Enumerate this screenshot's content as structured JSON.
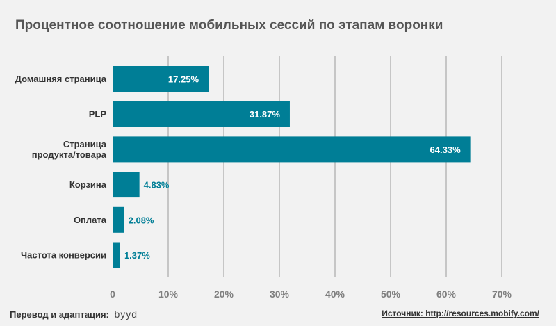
{
  "chart_data": {
    "type": "bar",
    "orientation": "horizontal",
    "title": "Процентное соотношение мобильных сессий по этапам воронки",
    "categories": [
      [
        "Домашняя страница"
      ],
      [
        "PLP"
      ],
      [
        "Страница",
        "продукта/товара"
      ],
      [
        "Корзина"
      ],
      [
        "Оплата"
      ],
      [
        "Частота конверсии"
      ]
    ],
    "values": [
      17.25,
      31.87,
      64.33,
      4.83,
      2.08,
      1.37
    ],
    "value_labels": [
      "17.25%",
      "31.87%",
      "64.33%",
      "4.83%",
      "2.08%",
      "1.37%"
    ],
    "xlim": [
      0,
      70
    ],
    "xticks": [
      0,
      10,
      20,
      30,
      40,
      50,
      60,
      70
    ],
    "xtick_labels": [
      "0",
      "10%",
      "20%",
      "30%",
      "40%",
      "50%",
      "60%",
      "70%"
    ],
    "grid": "vertical",
    "legend": "none",
    "colors": {
      "bar": "#007e96",
      "label_inside": "#ffffff",
      "label_outside": "#007e96",
      "grid": "#9a9a9a"
    }
  },
  "footer": {
    "credit": "Перевод и адаптация:",
    "brand": "byyd",
    "source": "Источник: http://resources.mobify.com/"
  }
}
